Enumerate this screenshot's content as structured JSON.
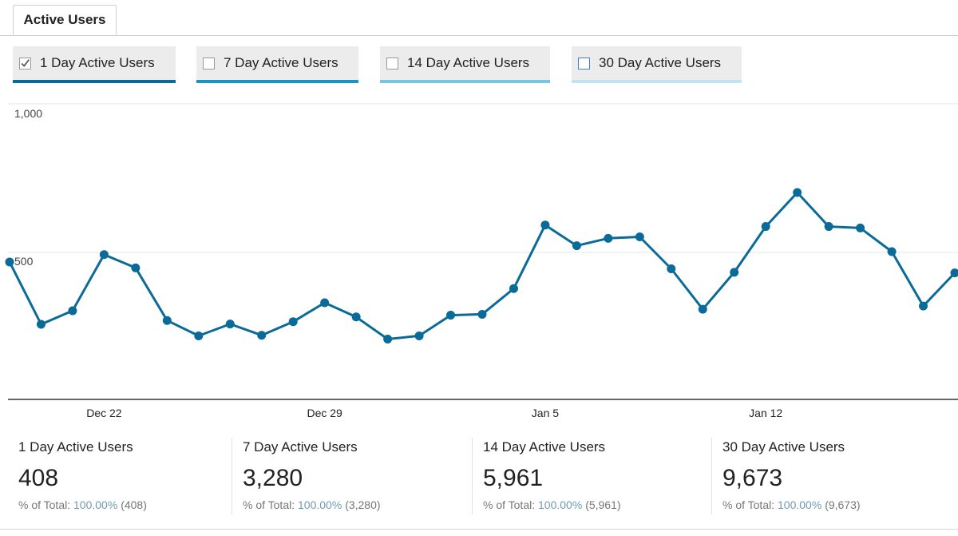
{
  "tab": {
    "label": "Active Users"
  },
  "series_buttons": [
    {
      "label": "1 Day Active Users",
      "checked": true,
      "color": "#0a6b99"
    },
    {
      "label": "7 Day Active Users",
      "checked": false,
      "color": "#1b93c7"
    },
    {
      "label": "14 Day Active Users",
      "checked": false,
      "color": "#78c4e3"
    },
    {
      "label": "30 Day Active Users",
      "checked": false,
      "color": "#c3e3f1"
    }
  ],
  "chart_data": {
    "type": "line",
    "x": [
      "Dec 19",
      "Dec 20",
      "Dec 21",
      "Dec 22",
      "Dec 23",
      "Dec 24",
      "Dec 25",
      "Dec 26",
      "Dec 27",
      "Dec 28",
      "Dec 29",
      "Dec 30",
      "Dec 31",
      "Jan 1",
      "Jan 2",
      "Jan 3",
      "Jan 4",
      "Jan 5",
      "Jan 6",
      "Jan 7",
      "Jan 8",
      "Jan 9",
      "Jan 10",
      "Jan 11",
      "Jan 12",
      "Jan 13",
      "Jan 14",
      "Jan 15",
      "Jan 16",
      "Jan 17",
      "Jan 18"
    ],
    "series": [
      {
        "name": "1 Day Active Users",
        "values": [
          465,
          254,
          300,
          490,
          445,
          267,
          215,
          255,
          217,
          263,
          327,
          279,
          204,
          215,
          285,
          288,
          375,
          590,
          520,
          545,
          550,
          442,
          305,
          430,
          585,
          700,
          585,
          580,
          500,
          316,
          428
        ]
      }
    ],
    "x_ticks": [
      "Dec 22",
      "Dec 29",
      "Jan 5",
      "Jan 12"
    ],
    "y_ticks": [
      "1,000",
      "500"
    ],
    "ylim": [
      0,
      1000
    ],
    "grid": true,
    "color": "#0a6b99"
  },
  "metrics": [
    {
      "title": "1 Day Active Users",
      "value": "408",
      "pct_label": "% of Total:",
      "pct_value": "100.00%",
      "pct_abs": "(408)"
    },
    {
      "title": "7 Day Active Users",
      "value": "3,280",
      "pct_label": "% of Total:",
      "pct_value": "100.00%",
      "pct_abs": "(3,280)"
    },
    {
      "title": "14 Day Active Users",
      "value": "5,961",
      "pct_label": "% of Total:",
      "pct_value": "100.00%",
      "pct_abs": "(5,961)"
    },
    {
      "title": "30 Day Active Users",
      "value": "9,673",
      "pct_label": "% of Total:",
      "pct_value": "100.00%",
      "pct_abs": "(9,673)"
    }
  ]
}
